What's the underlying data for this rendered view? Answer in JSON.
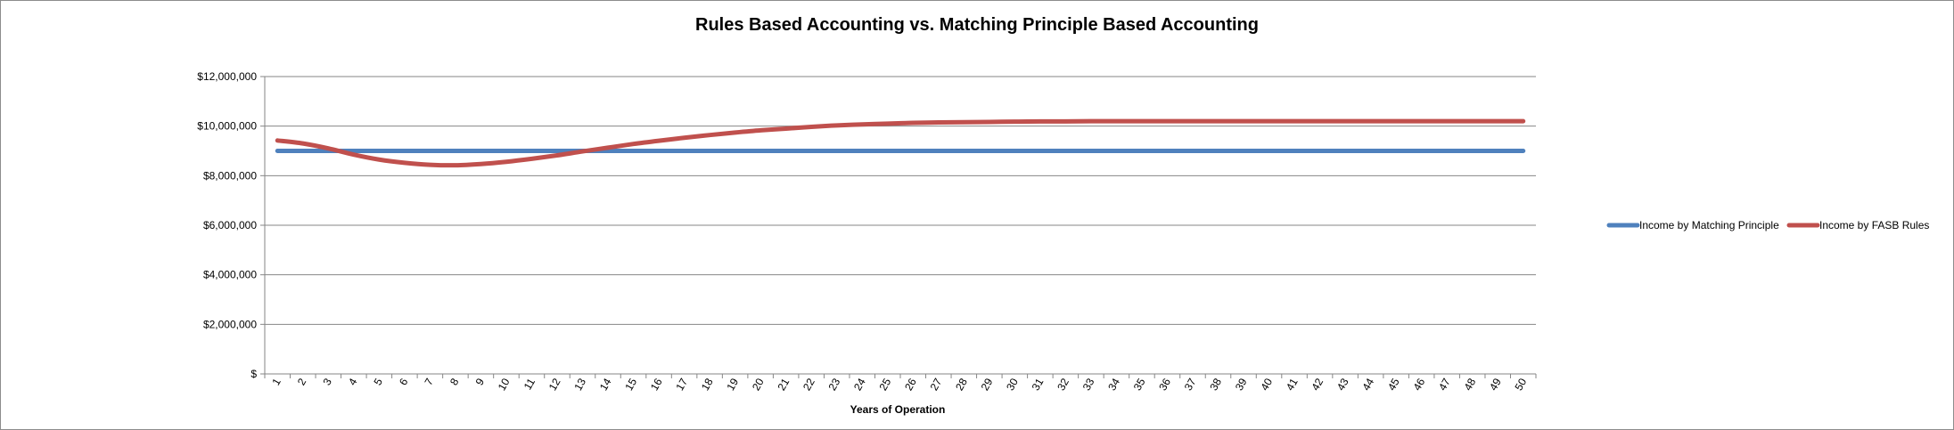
{
  "chart_data": {
    "type": "line",
    "title": "Rules Based Accounting vs. Matching Principle Based Accounting",
    "xlabel": "Years of Operation",
    "ylabel": "",
    "x": [
      1,
      2,
      3,
      4,
      5,
      6,
      7,
      8,
      9,
      10,
      11,
      12,
      13,
      14,
      15,
      16,
      17,
      18,
      19,
      20,
      21,
      22,
      23,
      24,
      25,
      26,
      27,
      28,
      29,
      30,
      31,
      32,
      33,
      34,
      35,
      36,
      37,
      38,
      39,
      40,
      41,
      42,
      43,
      44,
      45,
      46,
      47,
      48,
      49,
      50
    ],
    "ylim": [
      0,
      12000000
    ],
    "yticks": [
      0,
      2000000,
      4000000,
      6000000,
      8000000,
      10000000,
      12000000
    ],
    "ytick_labels": [
      "$",
      "$2,000,000",
      "$4,000,000",
      "$6,000,000",
      "$8,000,000",
      "$10,000,000",
      "$12,000,000"
    ],
    "grid": true,
    "legend_position": "right",
    "series": [
      {
        "name": "Income by Matching Principle",
        "color": "#4f81bd",
        "values": [
          9000000,
          9000000,
          9000000,
          9000000,
          9000000,
          9000000,
          9000000,
          9000000,
          9000000,
          9000000,
          9000000,
          9000000,
          9000000,
          9000000,
          9000000,
          9000000,
          9000000,
          9000000,
          9000000,
          9000000,
          9000000,
          9000000,
          9000000,
          9000000,
          9000000,
          9000000,
          9000000,
          9000000,
          9000000,
          9000000,
          9000000,
          9000000,
          9000000,
          9000000,
          9000000,
          9000000,
          9000000,
          9000000,
          9000000,
          9000000,
          9000000,
          9000000,
          9000000,
          9000000,
          9000000,
          9000000,
          9000000,
          9000000,
          9000000,
          9000000
        ]
      },
      {
        "name": "Income by FASB Rules",
        "color": "#c0504d",
        "values": [
          9420000,
          9300000,
          9100000,
          8850000,
          8650000,
          8520000,
          8440000,
          8420000,
          8470000,
          8560000,
          8680000,
          8820000,
          8980000,
          9130000,
          9280000,
          9410000,
          9530000,
          9640000,
          9740000,
          9830000,
          9900000,
          9970000,
          10030000,
          10070000,
          10100000,
          10130000,
          10150000,
          10160000,
          10170000,
          10180000,
          10190000,
          10190000,
          10200000,
          10200000,
          10200000,
          10200000,
          10200000,
          10200000,
          10200000,
          10200000,
          10200000,
          10200000,
          10200000,
          10200000,
          10200000,
          10200000,
          10200000,
          10200000,
          10200000,
          10200000
        ]
      }
    ]
  }
}
